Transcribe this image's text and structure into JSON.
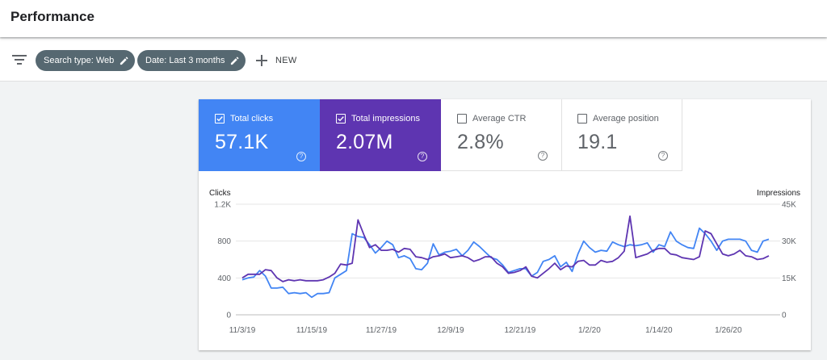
{
  "header": {
    "title": "Performance"
  },
  "filters": {
    "filter_icon": "filter-list-icon",
    "chips": [
      {
        "label": "Search type: Web",
        "icon": "edit-pencil-icon"
      },
      {
        "label": "Date: Last 3 months",
        "icon": "edit-pencil-icon"
      }
    ],
    "new_label": "NEW",
    "chip_color": "#566871"
  },
  "metrics": [
    {
      "label": "Total clicks",
      "value": "57.1K",
      "checked": true,
      "color": "#4285f4"
    },
    {
      "label": "Total impressions",
      "value": "2.07M",
      "checked": true,
      "color": "#5e35b1"
    },
    {
      "label": "Average CTR",
      "value": "2.8%",
      "checked": false
    },
    {
      "label": "Average position",
      "value": "19.1",
      "checked": false
    }
  ],
  "help_glyph": "?",
  "chart_data": {
    "type": "line",
    "left_axis_title": "Clicks",
    "right_axis_title": "Impressions",
    "left_ticks": [
      "0",
      "400",
      "800",
      "1.2K"
    ],
    "right_ticks": [
      "0",
      "15K",
      "30K",
      "45K"
    ],
    "left_ylim": [
      0,
      1200
    ],
    "right_ylim": [
      0,
      45000
    ],
    "x_tick_labels": [
      "11/3/19",
      "11/15/19",
      "11/27/19",
      "12/9/19",
      "12/21/19",
      "1/2/20",
      "1/14/20",
      "1/26/20"
    ],
    "x_tick_index": [
      0,
      12,
      24,
      36,
      48,
      60,
      72,
      84
    ],
    "grid": true,
    "series": [
      {
        "name": "Clicks",
        "axis": "left",
        "color": "#4285f4",
        "values": [
          380,
          400,
          410,
          480,
          420,
          290,
          290,
          300,
          230,
          240,
          230,
          240,
          190,
          230,
          230,
          240,
          400,
          440,
          480,
          880,
          850,
          840,
          760,
          670,
          730,
          800,
          760,
          620,
          640,
          610,
          500,
          490,
          560,
          770,
          650,
          680,
          690,
          710,
          640,
          700,
          790,
          740,
          680,
          620,
          600,
          540,
          460,
          480,
          500,
          500,
          420,
          460,
          580,
          600,
          640,
          520,
          570,
          470,
          660,
          800,
          730,
          680,
          700,
          690,
          790,
          760,
          740,
          760,
          750,
          760,
          780,
          680,
          760,
          740,
          900,
          800,
          760,
          730,
          720,
          940,
          880,
          800,
          700,
          800,
          820,
          820,
          820,
          800,
          700,
          680,
          800,
          820
        ]
      },
      {
        "name": "Impressions",
        "axis": "left",
        "color": "#5e35b1",
        "values": [
          400,
          440,
          440,
          440,
          490,
          480,
          400,
          360,
          380,
          370,
          380,
          370,
          370,
          370,
          380,
          410,
          450,
          550,
          540,
          560,
          1030,
          870,
          730,
          760,
          700,
          700,
          710,
          680,
          720,
          710,
          630,
          620,
          600,
          630,
          640,
          660,
          620,
          630,
          640,
          620,
          580,
          600,
          630,
          630,
          560,
          520,
          450,
          460,
          480,
          520,
          420,
          400,
          450,
          500,
          560,
          490,
          530,
          520,
          580,
          590,
          540,
          540,
          590,
          570,
          580,
          620,
          690,
          1070,
          620,
          640,
          660,
          700,
          720,
          720,
          660,
          650,
          620,
          610,
          600,
          630,
          910,
          880,
          770,
          660,
          640,
          660,
          700,
          640,
          630,
          600,
          610,
          640
        ]
      }
    ]
  }
}
